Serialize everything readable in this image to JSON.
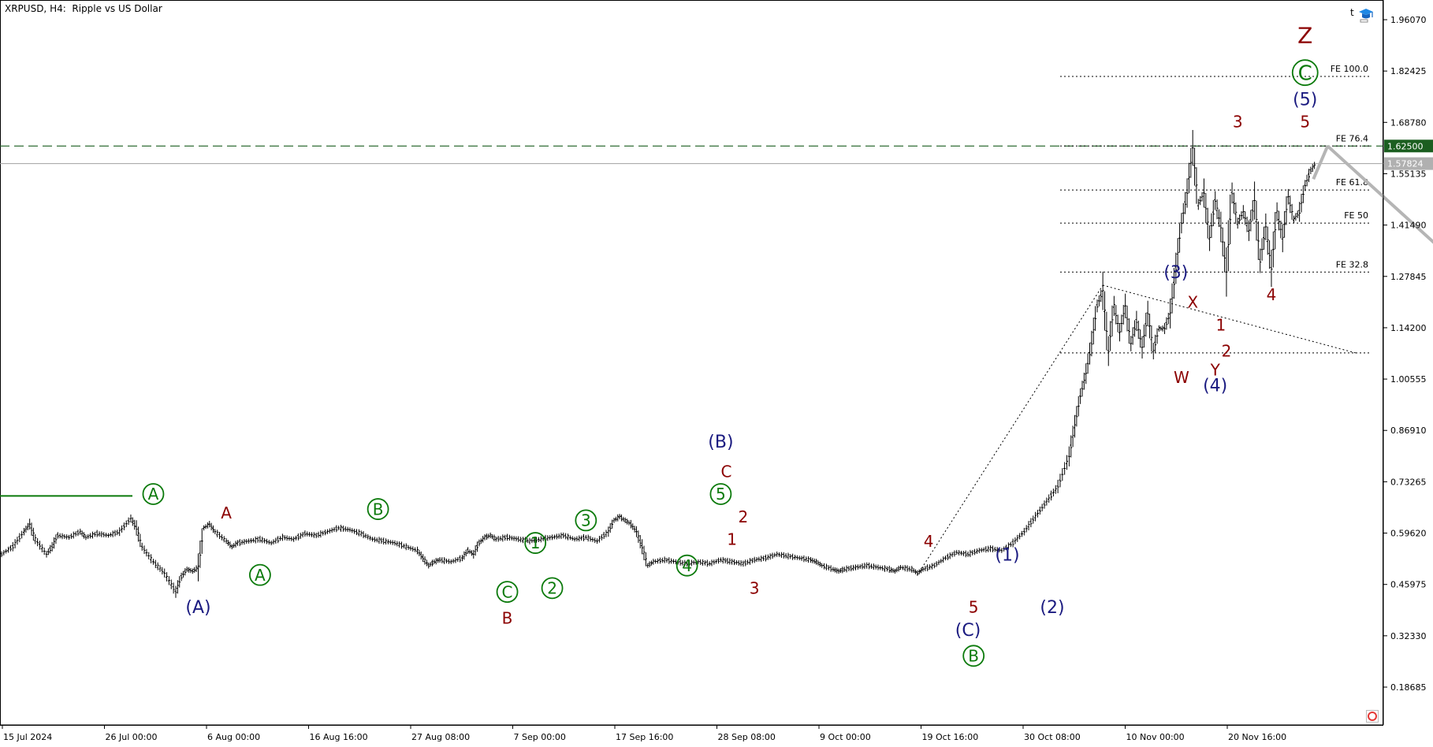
{
  "window": {
    "title": "XRPUSD, H4:  Ripple vs US Dollar",
    "top_right_letter": "t",
    "hat_icon": "graduation-cap-icon",
    "corner_icon": "circle-o-icon"
  },
  "colors": {
    "price": "#000000",
    "green": "#0b7a0b",
    "navy": "#1a1a80",
    "maroon": "#8b0000",
    "dashed_level": "#1b5e20",
    "current_price_line": "#a0a0a0",
    "projection": "#b5b5b5",
    "label_green_bg": "#1b5e20",
    "label_gray_bg": "#b0b0b0"
  },
  "chart_data": {
    "type": "ohlc-bar",
    "symbol": "XRPUSD",
    "timeframe": "H4",
    "title": "XRPUSD, H4:  Ripple vs US Dollar",
    "ylim": [
      0.12,
      2.02
    ],
    "y_ticks": [
      "1.96070",
      "1.82425",
      "1.68780",
      "1.55135",
      "1.41490",
      "1.27845",
      "1.14200",
      "1.00555",
      "0.86910",
      "0.73265",
      "0.59620",
      "0.45975",
      "0.32330",
      "0.18685"
    ],
    "x_ticks": [
      "15 Jul 2024",
      "26 Jul 00:00",
      "6 Aug 00:00",
      "16 Aug 16:00",
      "27 Aug 08:00",
      "7 Sep 00:00",
      "17 Sep 16:00",
      "28 Sep 08:00",
      "9 Oct 00:00",
      "19 Oct 16:00",
      "30 Oct 08:00",
      "10 Nov 00:00",
      "20 Nov 16:00"
    ],
    "price_path": [
      [
        0,
        0.54
      ],
      [
        2,
        0.56
      ],
      [
        4,
        0.6
      ],
      [
        5,
        0.62
      ],
      [
        6,
        0.58
      ],
      [
        8,
        0.54
      ],
      [
        9,
        0.56
      ],
      [
        10,
        0.59
      ],
      [
        12,
        0.585
      ],
      [
        14,
        0.6
      ],
      [
        15,
        0.585
      ],
      [
        17,
        0.595
      ],
      [
        19,
        0.59
      ],
      [
        21,
        0.6
      ],
      [
        23,
        0.635
      ],
      [
        24,
        0.61
      ],
      [
        25,
        0.56
      ],
      [
        27,
        0.52
      ],
      [
        29,
        0.49
      ],
      [
        31,
        0.44
      ],
      [
        32,
        0.48
      ],
      [
        33,
        0.5
      ],
      [
        34,
        0.495
      ],
      [
        35,
        0.505
      ],
      [
        36,
        0.61
      ],
      [
        37,
        0.62
      ],
      [
        38,
        0.6
      ],
      [
        40,
        0.575
      ],
      [
        41,
        0.56
      ],
      [
        42,
        0.57
      ],
      [
        44,
        0.575
      ],
      [
        46,
        0.58
      ],
      [
        48,
        0.57
      ],
      [
        50,
        0.585
      ],
      [
        52,
        0.58
      ],
      [
        54,
        0.595
      ],
      [
        56,
        0.59
      ],
      [
        58,
        0.6
      ],
      [
        60,
        0.61
      ],
      [
        62,
        0.605
      ],
      [
        64,
        0.595
      ],
      [
        66,
        0.58
      ],
      [
        68,
        0.575
      ],
      [
        70,
        0.57
      ],
      [
        72,
        0.56
      ],
      [
        74,
        0.55
      ],
      [
        75,
        0.53
      ],
      [
        76,
        0.51
      ],
      [
        77,
        0.52
      ],
      [
        78,
        0.525
      ],
      [
        80,
        0.52
      ],
      [
        82,
        0.53
      ],
      [
        83,
        0.55
      ],
      [
        84,
        0.54
      ],
      [
        85,
        0.57
      ],
      [
        86,
        0.585
      ],
      [
        87,
        0.59
      ],
      [
        88,
        0.58
      ],
      [
        90,
        0.585
      ],
      [
        92,
        0.58
      ],
      [
        94,
        0.575
      ],
      [
        96,
        0.58
      ],
      [
        98,
        0.585
      ],
      [
        100,
        0.59
      ],
      [
        102,
        0.58
      ],
      [
        104,
        0.585
      ],
      [
        106,
        0.575
      ],
      [
        108,
        0.6
      ],
      [
        109,
        0.63
      ],
      [
        110,
        0.64
      ],
      [
        111,
        0.63
      ],
      [
        112,
        0.62
      ],
      [
        113,
        0.6
      ],
      [
        114,
        0.56
      ],
      [
        115,
        0.51
      ],
      [
        116,
        0.52
      ],
      [
        118,
        0.525
      ],
      [
        120,
        0.52
      ],
      [
        122,
        0.515
      ],
      [
        124,
        0.52
      ],
      [
        126,
        0.515
      ],
      [
        128,
        0.525
      ],
      [
        130,
        0.52
      ],
      [
        132,
        0.515
      ],
      [
        134,
        0.525
      ],
      [
        136,
        0.53
      ],
      [
        138,
        0.54
      ],
      [
        140,
        0.535
      ],
      [
        142,
        0.53
      ],
      [
        144,
        0.525
      ],
      [
        145,
        0.52
      ],
      [
        146,
        0.51
      ],
      [
        148,
        0.5
      ],
      [
        149,
        0.495
      ],
      [
        150,
        0.5
      ],
      [
        152,
        0.505
      ],
      [
        154,
        0.51
      ],
      [
        156,
        0.505
      ],
      [
        158,
        0.5
      ],
      [
        159,
        0.495
      ],
      [
        160,
        0.505
      ],
      [
        162,
        0.5
      ],
      [
        163,
        0.49
      ],
      [
        164,
        0.5
      ],
      [
        166,
        0.51
      ],
      [
        168,
        0.53
      ],
      [
        170,
        0.545
      ],
      [
        172,
        0.54
      ],
      [
        174,
        0.55
      ],
      [
        176,
        0.555
      ],
      [
        178,
        0.55
      ],
      [
        180,
        0.57
      ],
      [
        182,
        0.6
      ],
      [
        184,
        0.64
      ],
      [
        186,
        0.68
      ],
      [
        188,
        0.72
      ],
      [
        190,
        0.8
      ],
      [
        191,
        0.88
      ],
      [
        192,
        0.96
      ],
      [
        193,
        1.02
      ],
      [
        194,
        1.1
      ],
      [
        195,
        1.2
      ],
      [
        196,
        1.24
      ],
      [
        197,
        1.08
      ],
      [
        198,
        1.2
      ],
      [
        199,
        1.13
      ],
      [
        200,
        1.2
      ],
      [
        201,
        1.1
      ],
      [
        202,
        1.16
      ],
      [
        203,
        1.09
      ],
      [
        204,
        1.18
      ],
      [
        205,
        1.08
      ],
      [
        206,
        1.14
      ],
      [
        207,
        1.14
      ],
      [
        208,
        1.18
      ],
      [
        209,
        1.3
      ],
      [
        210,
        1.42
      ],
      [
        211,
        1.5
      ],
      [
        212,
        1.62
      ],
      [
        213,
        1.47
      ],
      [
        214,
        1.5
      ],
      [
        215,
        1.38
      ],
      [
        216,
        1.48
      ],
      [
        217,
        1.41
      ],
      [
        218,
        1.29
      ],
      [
        219,
        1.5
      ],
      [
        220,
        1.42
      ],
      [
        221,
        1.45
      ],
      [
        222,
        1.4
      ],
      [
        223,
        1.48
      ],
      [
        224,
        1.32
      ],
      [
        225,
        1.41
      ],
      [
        226,
        1.3
      ],
      [
        227,
        1.45
      ],
      [
        228,
        1.38
      ],
      [
        229,
        1.49
      ],
      [
        230,
        1.43
      ],
      [
        231,
        1.45
      ],
      [
        232,
        1.52
      ],
      [
        233,
        1.56
      ],
      [
        234,
        1.58
      ]
    ],
    "horizontal_levels": [
      {
        "name": "resistance",
        "value": 1.625,
        "style": "dashed",
        "label": "1.62500"
      },
      {
        "name": "current",
        "value": 1.57824,
        "style": "solid",
        "label": "1.57824"
      }
    ],
    "fib_extensions": [
      {
        "label": "FE 100.0",
        "value": 1.81
      },
      {
        "label": "FE 76.4",
        "value": 1.625
      },
      {
        "label": "FE 61.8",
        "value": 1.508
      },
      {
        "label": "FE 50",
        "value": 1.42
      },
      {
        "label": "FE 32.8",
        "value": 1.29
      },
      {
        "label": "",
        "value": 1.075
      }
    ],
    "early_level": {
      "value": 0.695
    },
    "triangle_lines": [
      {
        "from": [
          163,
          0.485
        ],
        "to": [
          196,
          1.255
        ]
      },
      {
        "from": [
          196,
          1.255
        ],
        "to": [
          241,
          1.075
        ]
      }
    ],
    "projection_arrow": {
      "from": [
        236,
        1.625
      ],
      "to": [
        250,
        1.34
      ]
    },
    "wave_labels": [
      {
        "text": "A",
        "x": 27,
        "y": 0.7,
        "level": "green-circle"
      },
      {
        "text": "(A)",
        "x": 35,
        "y": 0.4,
        "level": "navy"
      },
      {
        "text": "A",
        "x": 40,
        "y": 0.65,
        "level": "maroon"
      },
      {
        "text": "A",
        "x": 46,
        "y": 0.485,
        "level": "green-circle"
      },
      {
        "text": "B",
        "x": 67,
        "y": 0.66,
        "level": "green-circle"
      },
      {
        "text": "C",
        "x": 90,
        "y": 0.44,
        "level": "green-circle"
      },
      {
        "text": "B",
        "x": 90,
        "y": 0.37,
        "level": "maroon"
      },
      {
        "text": "1",
        "x": 95,
        "y": 0.57,
        "level": "green-circle"
      },
      {
        "text": "2",
        "x": 98,
        "y": 0.45,
        "level": "green-circle"
      },
      {
        "text": "3",
        "x": 104,
        "y": 0.63,
        "level": "green-circle"
      },
      {
        "text": "4",
        "x": 122,
        "y": 0.51,
        "level": "green-circle"
      },
      {
        "text": "(B)",
        "x": 128,
        "y": 0.84,
        "level": "navy"
      },
      {
        "text": "C",
        "x": 129,
        "y": 0.76,
        "level": "maroon"
      },
      {
        "text": "5",
        "x": 128,
        "y": 0.7,
        "level": "green-circle"
      },
      {
        "text": "2",
        "x": 132,
        "y": 0.64,
        "level": "maroon"
      },
      {
        "text": "1",
        "x": 130,
        "y": 0.58,
        "level": "maroon"
      },
      {
        "text": "3",
        "x": 134,
        "y": 0.45,
        "level": "maroon"
      },
      {
        "text": "4",
        "x": 165,
        "y": 0.575,
        "level": "maroon"
      },
      {
        "text": "(1)",
        "x": 179,
        "y": 0.54,
        "level": "navy"
      },
      {
        "text": "5",
        "x": 173,
        "y": 0.4,
        "level": "maroon"
      },
      {
        "text": "(2)",
        "x": 187,
        "y": 0.4,
        "level": "navy"
      },
      {
        "text": "(C)",
        "x": 172,
        "y": 0.34,
        "level": "navy"
      },
      {
        "text": "B",
        "x": 173,
        "y": 0.27,
        "level": "green-circle"
      },
      {
        "text": "(3)",
        "x": 209,
        "y": 1.29,
        "level": "navy"
      },
      {
        "text": "X",
        "x": 212,
        "y": 1.21,
        "level": "maroon"
      },
      {
        "text": "1",
        "x": 217,
        "y": 1.15,
        "level": "maroon"
      },
      {
        "text": "2",
        "x": 218,
        "y": 1.08,
        "level": "maroon"
      },
      {
        "text": "W",
        "x": 210,
        "y": 1.01,
        "level": "maroon"
      },
      {
        "text": "Y",
        "x": 216,
        "y": 1.03,
        "level": "maroon"
      },
      {
        "text": "(4)",
        "x": 216,
        "y": 0.99,
        "level": "navy"
      },
      {
        "text": "3",
        "x": 220,
        "y": 1.69,
        "level": "maroon"
      },
      {
        "text": "4",
        "x": 226,
        "y": 1.23,
        "level": "maroon"
      },
      {
        "text": "5",
        "x": 232,
        "y": 1.69,
        "level": "maroon"
      },
      {
        "text": "(5)",
        "x": 232,
        "y": 1.75,
        "level": "navy"
      },
      {
        "text": "C",
        "x": 232,
        "y": 1.82,
        "level": "green-circle-large"
      },
      {
        "text": "Z",
        "x": 232,
        "y": 1.92,
        "level": "maroon-large"
      }
    ]
  }
}
